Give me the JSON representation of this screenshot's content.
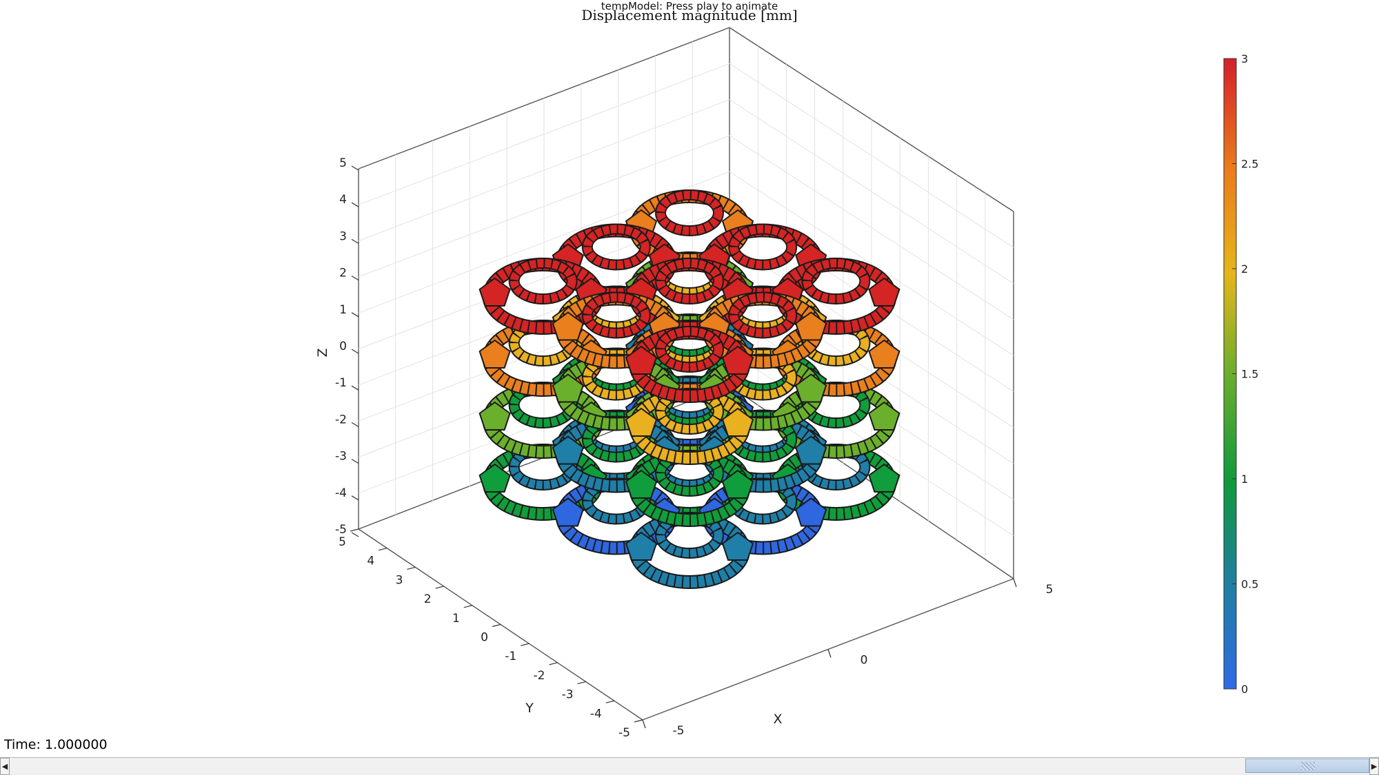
{
  "figure": {
    "title": "tempModel: Press play to animate",
    "subtitle": "Displacement magnitude [mm]",
    "time_label": "Time: 1.000000"
  },
  "axes": {
    "x_label": "X",
    "y_label": "Y",
    "z_label": "Z",
    "x_ticks": [
      "-5",
      "0",
      "5"
    ],
    "y_ticks": [
      "5",
      "4",
      "3",
      "2",
      "1",
      "0",
      "-1",
      "-2",
      "-3",
      "-4",
      "-5"
    ],
    "z_ticks": [
      "5",
      "4",
      "3",
      "2",
      "1",
      "0",
      "-1",
      "-2",
      "-3",
      "-4",
      "-5"
    ],
    "grid": true
  },
  "colorbar": {
    "ticks": [
      "3",
      "2.5",
      "2",
      "1.5",
      "1",
      "0.5",
      "0"
    ],
    "min": 0,
    "max": 3,
    "colormap": "gjet"
  },
  "mesh": {
    "description_colors": [
      "#2f67e0",
      "#1f7fa8",
      "#109d3b",
      "#6bb02c",
      "#e9b020",
      "#ea7f1e",
      "#d42424"
    ]
  },
  "slider": {
    "value": 1.0
  }
}
